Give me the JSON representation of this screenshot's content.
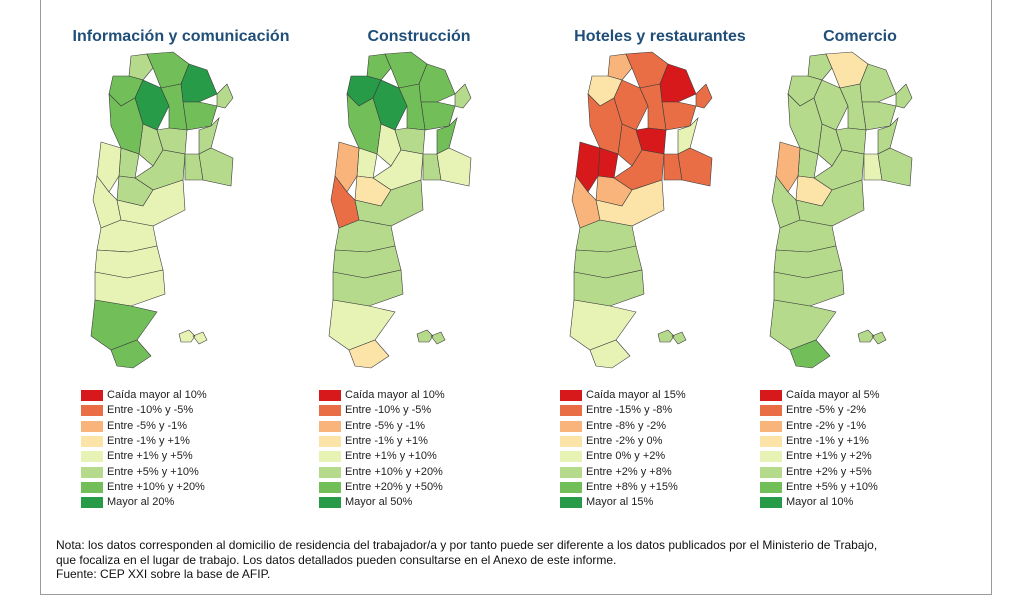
{
  "panels": [
    {
      "title": "Información y comunicación",
      "palette": [
        "#d7191c",
        "#ea6e45",
        "#f9b47b",
        "#fce4a8",
        "#e6f3b5",
        "#b5da8c",
        "#72bf5a",
        "#279b48"
      ],
      "region_levels": [
        5,
        6,
        6,
        7,
        7,
        5,
        6,
        6,
        5,
        5,
        5,
        6,
        5,
        4,
        5,
        5,
        5,
        5,
        4,
        4,
        4,
        4,
        4,
        6,
        6
      ],
      "legend": [
        "Caída mayor al 10%",
        "Entre -10% y -5%",
        "Entre -5% y -1%",
        "Entre -1% y +1%",
        "Entre +1% y +5%",
        "Entre +5% y +10%",
        "Entre +10% y +20%",
        "Mayor al 20%"
      ]
    },
    {
      "title": "Construcción",
      "palette": [
        "#d7191c",
        "#ea6e45",
        "#f9b47b",
        "#fce4a8",
        "#e6f3b5",
        "#b5da8c",
        "#72bf5a",
        "#279b48"
      ],
      "region_levels": [
        6,
        6,
        7,
        7,
        6,
        5,
        6,
        6,
        6,
        4,
        5,
        6,
        4,
        2,
        4,
        5,
        4,
        3,
        1,
        5,
        5,
        5,
        5,
        4,
        3
      ],
      "legend": [
        "Caída mayor al 10%",
        "Entre -10% y -5%",
        "Entre -5% y -1%",
        "Entre -1% y +1%",
        "Entre +1% y +10%",
        "Entre +10% y +20%",
        "Entre +20% y +50%",
        "Mayor al 50%"
      ]
    },
    {
      "title": "Hoteles y restaurantes",
      "palette": [
        "#d7191c",
        "#ea6e45",
        "#f9b47b",
        "#fce4a8",
        "#e6f3b5",
        "#b5da8c",
        "#72bf5a",
        "#279b48"
      ],
      "region_levels": [
        2,
        1,
        3,
        1,
        0,
        1,
        1,
        1,
        4,
        1,
        0,
        1,
        0,
        0,
        1,
        1,
        1,
        2,
        2,
        3,
        5,
        5,
        5,
        4,
        4
      ],
      "legend": [
        "Caída mayor al 15%",
        "Entre -15% y -8%",
        "Entre -8% y -2%",
        "Entre -2% y 0%",
        "Entre 0% y +2%",
        "Entre +2% y +8%",
        "Entre +8% y +15%",
        "Mayor al 15%"
      ]
    },
    {
      "title": "Comercio",
      "palette": [
        "#d7191c",
        "#ea6e45",
        "#f9b47b",
        "#fce4a8",
        "#e6f3b5",
        "#b5da8c",
        "#72bf5a",
        "#279b48"
      ],
      "region_levels": [
        5,
        3,
        5,
        5,
        5,
        5,
        5,
        5,
        5,
        5,
        5,
        5,
        5,
        2,
        5,
        4,
        5,
        3,
        5,
        5,
        5,
        5,
        5,
        5,
        6
      ],
      "legend": [
        "Caída mayor al 5%",
        "Entre -5% y -2%",
        "Entre -2% y -1%",
        "Entre -1% y +1%",
        "Entre +1% y +2%",
        "Entre +2% y +5%",
        "Entre +5% y +10%",
        "Mayor al 10%"
      ]
    }
  ],
  "note": {
    "line1": "Nota: los datos corresponden al domicilio de residencia del trabajador/a y por tanto puede ser diferente a los datos publicados por el Ministerio de Trabajo,",
    "line2": "que focaliza en el lugar de trabajo. Los datos detallados pueden consultarse en el Anexo de este informe.",
    "line3": "Fuente: CEP XXI sobre la base de AFIP."
  }
}
